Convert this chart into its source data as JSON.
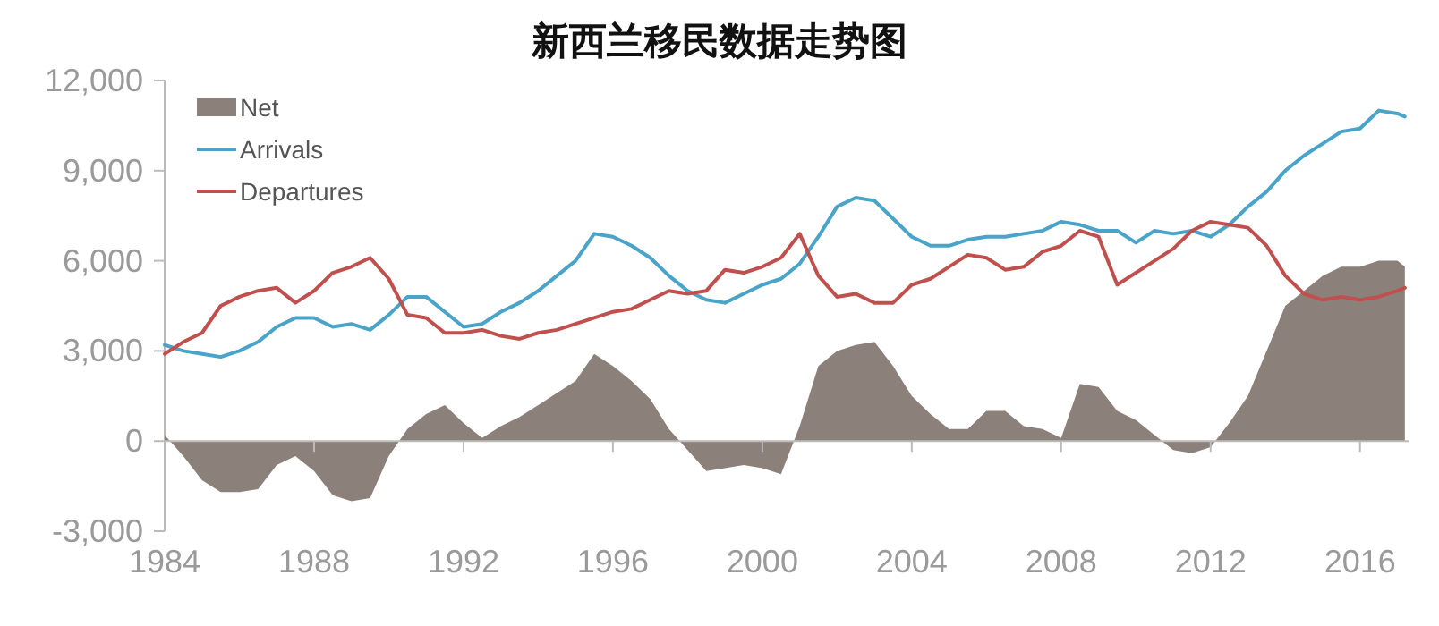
{
  "chart_data": {
    "type": "line",
    "title": "新西兰移民数据走势图",
    "x": [
      1984,
      1984.5,
      1985,
      1985.5,
      1986,
      1986.5,
      1987,
      1987.5,
      1988,
      1988.5,
      1989,
      1989.5,
      1990,
      1990.5,
      1991,
      1991.5,
      1992,
      1992.5,
      1993,
      1993.5,
      1994,
      1994.5,
      1995,
      1995.5,
      1996,
      1996.5,
      1997,
      1997.5,
      1998,
      1998.5,
      1999,
      1999.5,
      2000,
      2000.5,
      2001,
      2001.5,
      2002,
      2002.5,
      2003,
      2003.5,
      2004,
      2004.5,
      2005,
      2005.5,
      2006,
      2006.5,
      2007,
      2007.5,
      2008,
      2008.5,
      2009,
      2009.5,
      2010,
      2010.5,
      2011,
      2011.5,
      2012,
      2012.5,
      2013,
      2013.5,
      2014,
      2014.5,
      2015,
      2015.5,
      2016,
      2016.5,
      2017,
      2017.2
    ],
    "series": [
      {
        "name": "Net",
        "type": "area",
        "color": "#8c807a",
        "values": [
          200,
          -500,
          -1300,
          -1700,
          -1700,
          -1600,
          -800,
          -500,
          -1000,
          -1800,
          -2000,
          -1900,
          -500,
          400,
          900,
          1200,
          600,
          100,
          500,
          800,
          1200,
          1600,
          2000,
          2900,
          2500,
          2000,
          1400,
          400,
          -300,
          -1000,
          -900,
          -800,
          -900,
          -1100,
          500,
          2500,
          3000,
          3200,
          3300,
          2500,
          1500,
          900,
          400,
          400,
          1000,
          1000,
          500,
          400,
          100,
          1900,
          1800,
          1000,
          700,
          200,
          -300,
          -400,
          -200,
          600,
          1500,
          3000,
          4500,
          5000,
          5500,
          5800,
          5800,
          6000,
          6000,
          5800
        ]
      },
      {
        "name": "Arrivals",
        "color": "#4aa3c8",
        "values": [
          3200,
          3000,
          2900,
          2800,
          3000,
          3300,
          3800,
          4100,
          4100,
          3800,
          3900,
          3700,
          4200,
          4800,
          4800,
          4300,
          3800,
          3900,
          4300,
          4600,
          5000,
          5500,
          6000,
          6900,
          6800,
          6500,
          6100,
          5500,
          5000,
          4700,
          4600,
          4900,
          5200,
          5400,
          5900,
          6800,
          7800,
          8100,
          8000,
          7400,
          6800,
          6500,
          6500,
          6700,
          6800,
          6800,
          6900,
          7000,
          7300,
          7200,
          7000,
          7000,
          6600,
          7000,
          6900,
          7000,
          6800,
          7200,
          7800,
          8300,
          9000,
          9500,
          9900,
          10300,
          10400,
          11000,
          10900,
          10800
        ]
      },
      {
        "name": "Departures",
        "color": "#c0504d",
        "values": [
          2900,
          3300,
          3600,
          4500,
          4800,
          5000,
          5100,
          4600,
          5000,
          5600,
          5800,
          6100,
          5400,
          4200,
          4100,
          3600,
          3600,
          3700,
          3500,
          3400,
          3600,
          3700,
          3900,
          4100,
          4300,
          4400,
          4700,
          5000,
          4900,
          5000,
          5700,
          5600,
          5800,
          6100,
          6900,
          5500,
          4800,
          4900,
          4600,
          4600,
          5200,
          5400,
          5800,
          6200,
          6100,
          5700,
          5800,
          6300,
          6500,
          7000,
          6800,
          5200,
          5600,
          6000,
          6400,
          7000,
          7300,
          7200,
          7100,
          6500,
          5500,
          4900,
          4700,
          4800,
          4700,
          4800,
          5000,
          5100
        ]
      }
    ],
    "xlim": [
      1984,
      2017.3
    ],
    "xticks": [
      1984,
      1988,
      1992,
      1996,
      2000,
      2004,
      2008,
      2012,
      2016
    ],
    "ylim": [
      -3000,
      12000
    ],
    "yticks": [
      {
        "value": -3000,
        "label": "-3,000"
      },
      0,
      {
        "value": 3000,
        "label": "3,000"
      },
      {
        "value": 6000,
        "label": "6,000"
      },
      {
        "value": 9000,
        "label": "9,000"
      },
      {
        "value": 12000,
        "label": "12,000"
      }
    ],
    "legend": "top left"
  }
}
